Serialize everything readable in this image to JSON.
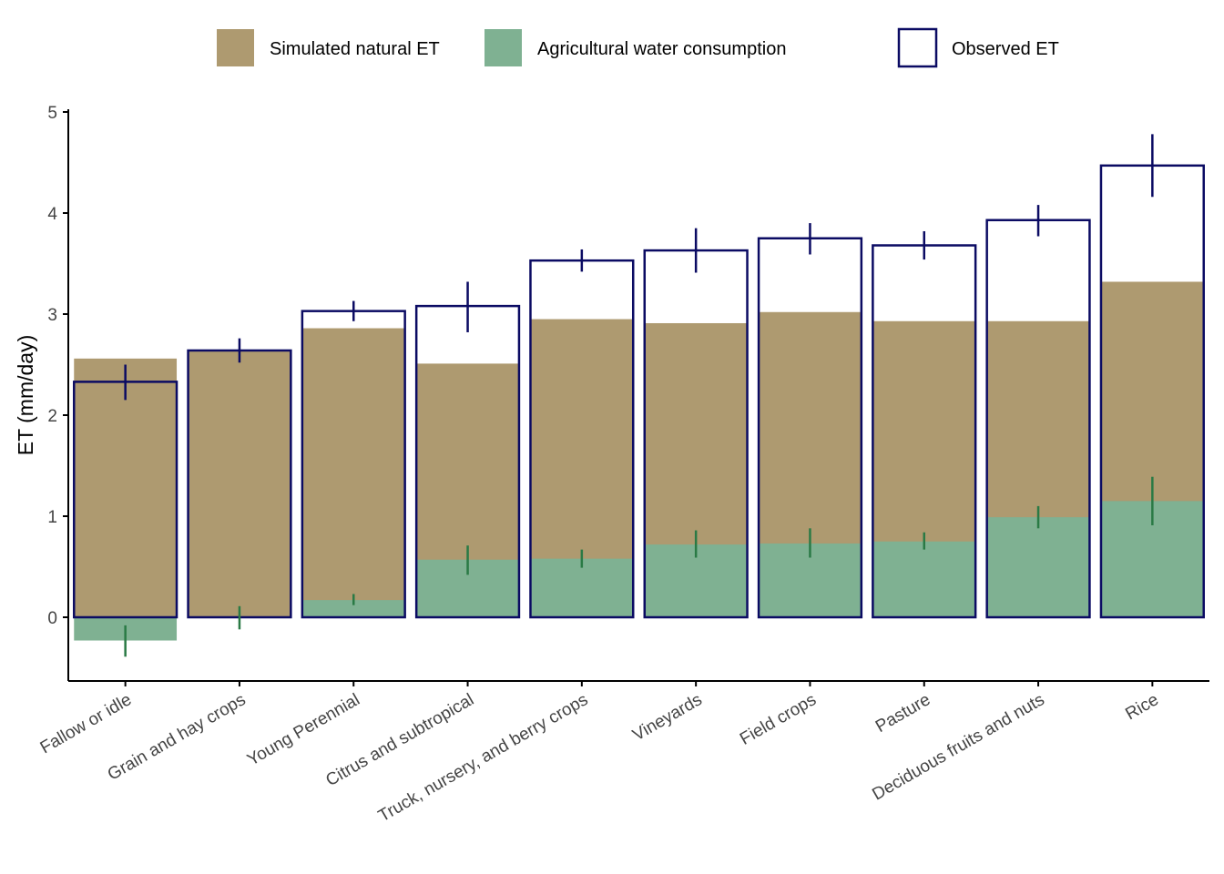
{
  "chart_data": {
    "type": "bar",
    "title": "",
    "xlabel": "",
    "ylabel": "ET (mm/day)",
    "ylim": [
      -0.62,
      5.05
    ],
    "yticks": [
      0,
      1,
      2,
      3,
      4,
      5
    ],
    "grid": false,
    "legend_position": "top",
    "legend": [
      {
        "key": "natural",
        "label": "Simulated natural ET",
        "type": "fill"
      },
      {
        "key": "ag",
        "label": "Agricultural water consumption",
        "type": "fill"
      },
      {
        "key": "observed",
        "label": "Observed ET",
        "type": "outline"
      }
    ],
    "categories": [
      "Fallow or idle",
      "Grain and hay crops",
      "Young Perennial",
      "Citrus and subtropical",
      "Truck, nursery, and berry crops",
      "Vineyards",
      "Field crops",
      "Pasture",
      "Deciduous fruits and nuts",
      "Rice"
    ],
    "series": [
      {
        "key": "natural",
        "name": "Simulated natural ET",
        "values": [
          2.56,
          2.64,
          2.86,
          2.51,
          2.95,
          2.91,
          3.02,
          2.93,
          2.93,
          3.32
        ]
      },
      {
        "key": "ag",
        "name": "Agricultural water consumption",
        "values": [
          -0.23,
          0.0,
          0.17,
          0.57,
          0.58,
          0.72,
          0.73,
          0.75,
          0.99,
          1.15
        ],
        "error_low": [
          -0.39,
          -0.12,
          0.12,
          0.42,
          0.49,
          0.59,
          0.59,
          0.67,
          0.88,
          0.91
        ],
        "error_high": [
          -0.08,
          0.11,
          0.23,
          0.71,
          0.67,
          0.86,
          0.88,
          0.84,
          1.1,
          1.39
        ]
      },
      {
        "key": "observed",
        "name": "Observed ET",
        "values": [
          2.33,
          2.64,
          3.03,
          3.08,
          3.53,
          3.63,
          3.75,
          3.68,
          3.93,
          4.47
        ],
        "error_low": [
          2.15,
          2.52,
          2.93,
          2.82,
          3.42,
          3.41,
          3.59,
          3.54,
          3.77,
          4.16
        ],
        "error_high": [
          2.5,
          2.76,
          3.13,
          3.32,
          3.64,
          3.85,
          3.9,
          3.82,
          4.08,
          4.78
        ]
      }
    ],
    "colors": {
      "natural": "#ae9a70",
      "ag": "#7fb192",
      "observed_outline": "#0b0b63",
      "observed_error": "#0b0b63",
      "ag_error": "#2a7a45",
      "axis": "#000000",
      "tick_label": "#444444"
    }
  }
}
